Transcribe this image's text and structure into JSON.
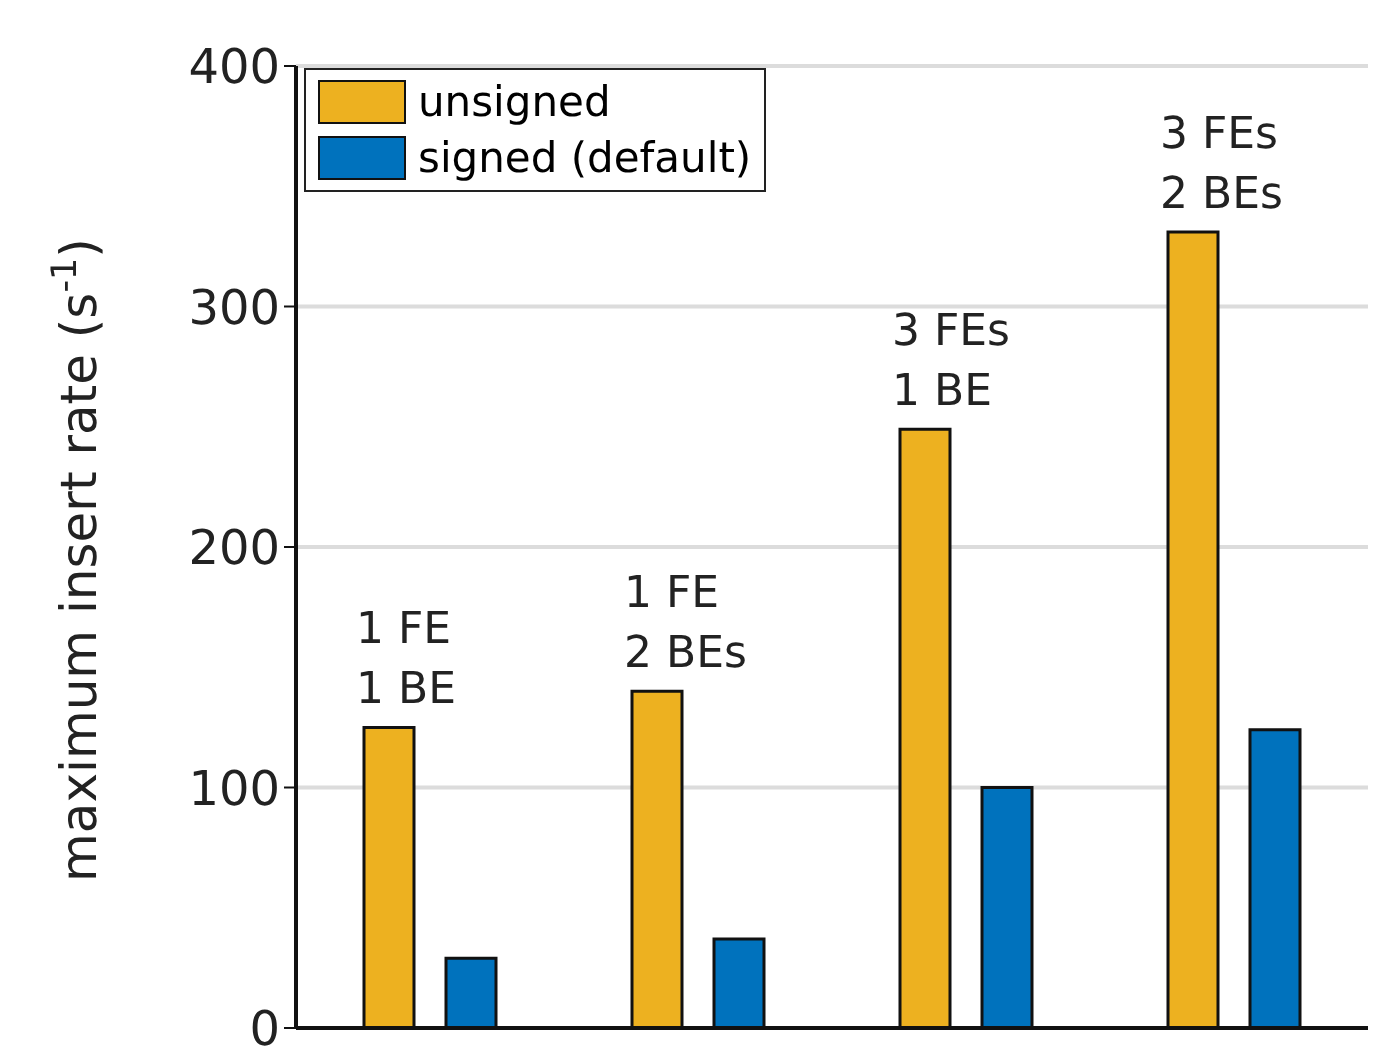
{
  "chart_data": {
    "type": "bar",
    "ylabel": "maximum insert rate (s$^{-1}$)",
    "categories": [
      null,
      null,
      null,
      null
    ],
    "series": [
      {
        "name": "unsigned",
        "color": "#edb120",
        "values": [
          125,
          140,
          249,
          331
        ]
      },
      {
        "name": "signed (default)",
        "color": "#0072bd",
        "values": [
          29,
          37,
          100,
          124
        ]
      }
    ],
    "ylim": [
      0,
      400
    ],
    "yticks": [
      0,
      100,
      200,
      300,
      400
    ],
    "grid": "y",
    "legend": "top left",
    "tick_labels": "y",
    "annotations": [
      "1 FE\n1 BE",
      "1 FE\n2 BEs",
      "3 FEs\n1 BE",
      "3 FEs\n2 BEs"
    ]
  }
}
